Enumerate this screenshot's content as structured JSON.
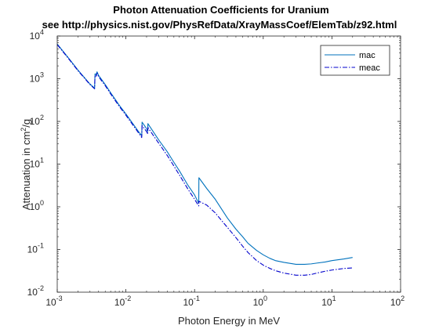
{
  "chart_data": {
    "type": "line",
    "title": "Photon Attenuation Coefficients for Uranium",
    "subtitle": "see http://physics.nist.gov/PhysRefData/XrayMassCoef/ElemTab/z92.html",
    "xlabel": "Photon Energy in MeV",
    "ylabel": "Attenuation in cm²/g",
    "xscale": "log",
    "yscale": "log",
    "xlim": [
      0.001,
      100
    ],
    "ylim": [
      0.01,
      10000
    ],
    "grid": false,
    "legend_position": "top-right",
    "x_ticks": [
      {
        "value": 0.001,
        "base": "10",
        "exp": "-3"
      },
      {
        "value": 0.01,
        "base": "10",
        "exp": "-2"
      },
      {
        "value": 0.1,
        "base": "10",
        "exp": "-1"
      },
      {
        "value": 1,
        "base": "10",
        "exp": "0"
      },
      {
        "value": 10,
        "base": "10",
        "exp": "1"
      },
      {
        "value": 100,
        "base": "10",
        "exp": "2"
      }
    ],
    "y_ticks": [
      {
        "value": 0.01,
        "base": "10",
        "exp": "-2"
      },
      {
        "value": 0.1,
        "base": "10",
        "exp": "-1"
      },
      {
        "value": 1,
        "base": "10",
        "exp": "0"
      },
      {
        "value": 10,
        "base": "10",
        "exp": "1"
      },
      {
        "value": 100,
        "base": "10",
        "exp": "2"
      },
      {
        "value": 1000,
        "base": "10",
        "exp": "3"
      },
      {
        "value": 10000,
        "base": "10",
        "exp": "4"
      }
    ],
    "series": [
      {
        "name": "mac",
        "color": "#0072bd",
        "dash": "solid",
        "x": [
          0.001,
          0.0015,
          0.002,
          0.003,
          0.0035,
          0.00355,
          0.0037,
          0.0038,
          0.004,
          0.005,
          0.006,
          0.008,
          0.01,
          0.015,
          0.017,
          0.0172,
          0.02,
          0.0208,
          0.0209,
          0.03,
          0.04,
          0.05,
          0.06,
          0.08,
          0.1,
          0.115,
          0.1156,
          0.15,
          0.2,
          0.3,
          0.4,
          0.5,
          0.6,
          0.8,
          1,
          1.25,
          1.5,
          2,
          3,
          4,
          5,
          6,
          8,
          10,
          15,
          20
        ],
        "y": [
          6500,
          2900,
          1600,
          750,
          600,
          1300,
          1250,
          1450,
          1200,
          730,
          470,
          240,
          150,
          60,
          46,
          96,
          68,
          58,
          89,
          37,
          19.5,
          11,
          7,
          3.2,
          1.9,
          1.2,
          4.8,
          2.7,
          1.5,
          0.55,
          0.3,
          0.2,
          0.14,
          0.095,
          0.075,
          0.062,
          0.055,
          0.05,
          0.045,
          0.045,
          0.046,
          0.048,
          0.051,
          0.055,
          0.06,
          0.065
        ]
      },
      {
        "name": "meac",
        "color": "#0000cc",
        "dash": "dashdot",
        "x": [
          0.001,
          0.0015,
          0.002,
          0.003,
          0.0035,
          0.00355,
          0.0037,
          0.0038,
          0.004,
          0.005,
          0.006,
          0.008,
          0.01,
          0.015,
          0.017,
          0.0172,
          0.02,
          0.0208,
          0.0209,
          0.03,
          0.04,
          0.05,
          0.06,
          0.08,
          0.1,
          0.115,
          0.1156,
          0.15,
          0.2,
          0.3,
          0.4,
          0.5,
          0.6,
          0.8,
          1,
          1.25,
          1.5,
          2,
          3,
          4,
          5,
          6,
          8,
          10,
          15,
          20
        ],
        "y": [
          6300,
          2800,
          1550,
          730,
          580,
          1200,
          1150,
          1350,
          1120,
          690,
          440,
          225,
          140,
          56,
          42,
          80,
          58,
          50,
          72,
          31,
          16,
          9,
          5.6,
          2.6,
          1.5,
          1.05,
          1.35,
          1.1,
          0.72,
          0.33,
          0.19,
          0.12,
          0.085,
          0.055,
          0.043,
          0.036,
          0.032,
          0.028,
          0.025,
          0.025,
          0.026,
          0.028,
          0.031,
          0.033,
          0.036,
          0.037
        ]
      }
    ]
  }
}
